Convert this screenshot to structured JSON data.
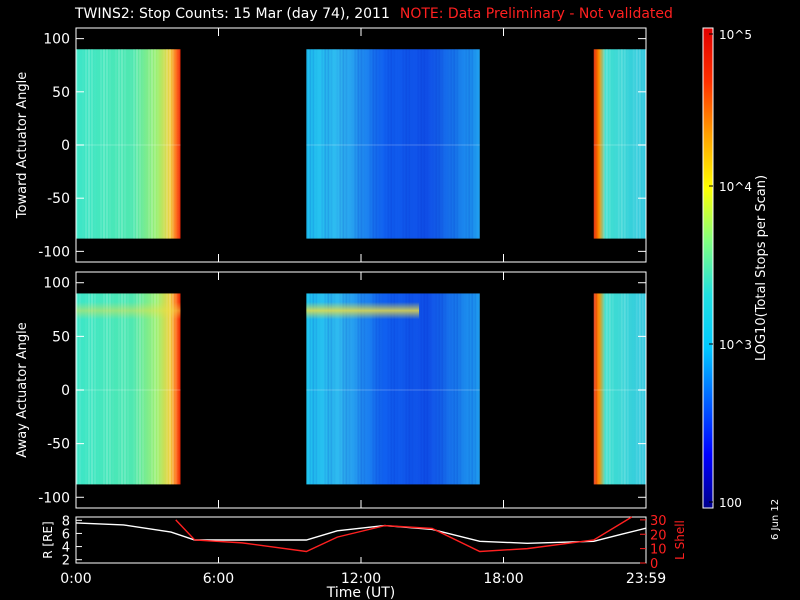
{
  "title": "TWINS2: Stop Counts: 15 Mar (day  74), 2011",
  "note": "NOTE: Data Preliminary - Not validated",
  "stamp": "6 Jun 12",
  "colorbar": {
    "label": "LOG10(Total Stops per Scan)",
    "ticks": [
      "10^5",
      "10^4",
      "10^3",
      "100"
    ],
    "colors": [
      "#00008c",
      "#0000ff",
      "#0060ff",
      "#00c8ff",
      "#20e0e0",
      "#80ff80",
      "#ffff00",
      "#ffa000",
      "#ff3000",
      "#e00000"
    ]
  },
  "chart_data": [
    {
      "type": "heatmap",
      "ylabel": "Toward Actuator Angle",
      "yticks": [
        "100",
        "50",
        "0",
        "-50",
        "-100"
      ],
      "ylim": [
        -110,
        110
      ],
      "data_range_y": [
        -88,
        90
      ],
      "segments": [
        {
          "start_h": 0.0,
          "end_h": 4.4,
          "level": "cyan-green, rising to orange-red at end"
        },
        {
          "start_h": 9.7,
          "end_h": 17.0,
          "level": "cyan-blue"
        },
        {
          "start_h": 21.8,
          "end_h": 24.0,
          "level": "red edge then cyan"
        }
      ]
    },
    {
      "type": "heatmap",
      "ylabel": "Away Actuator Angle",
      "yticks": [
        "100",
        "50",
        "0",
        "-50",
        "-100"
      ],
      "ylim": [
        -110,
        110
      ],
      "data_range_y": [
        -88,
        90
      ],
      "segments": [
        {
          "start_h": 0.0,
          "end_h": 4.4,
          "level": "cyan-green, rising to orange-red at end"
        },
        {
          "start_h": 9.7,
          "end_h": 17.0,
          "level": "cyan-blue with yellow band near +75"
        },
        {
          "start_h": 21.8,
          "end_h": 24.0,
          "level": "red edge then cyan"
        }
      ]
    },
    {
      "type": "line",
      "xlabel": "Time (UT)",
      "xticks": [
        "0:00",
        "6:00",
        "12:00",
        "18:00",
        "23:59"
      ],
      "xlim": [
        0,
        24
      ],
      "ylabel_left": "R [RE]",
      "ylabel_right": "L Shell",
      "yticks_left": [
        "2",
        "4",
        "6",
        "8"
      ],
      "yticks_right": [
        "0",
        "10",
        "20",
        "30"
      ],
      "ylim_left": [
        1.5,
        8.5
      ],
      "ylim_right": [
        0,
        32
      ],
      "series": [
        {
          "name": "R [RE]",
          "color": "#ffffff",
          "x": [
            0,
            2,
            4,
            5,
            7,
            9.7,
            11,
            13,
            15,
            17,
            19,
            21.8,
            23,
            24
          ],
          "y": [
            7.6,
            7.3,
            6.2,
            5.0,
            5.0,
            5.0,
            6.4,
            7.2,
            6.6,
            4.8,
            4.5,
            4.8,
            5.9,
            6.8
          ]
        },
        {
          "name": "L Shell",
          "color": "#ff2020",
          "x": [
            4.2,
            5.0,
            7,
            9.7,
            11,
            13,
            15,
            17,
            19,
            21.8,
            23,
            23.4
          ],
          "y": [
            30,
            16,
            14,
            8,
            18,
            26,
            24,
            8,
            10,
            16,
            28,
            32
          ]
        }
      ]
    }
  ]
}
